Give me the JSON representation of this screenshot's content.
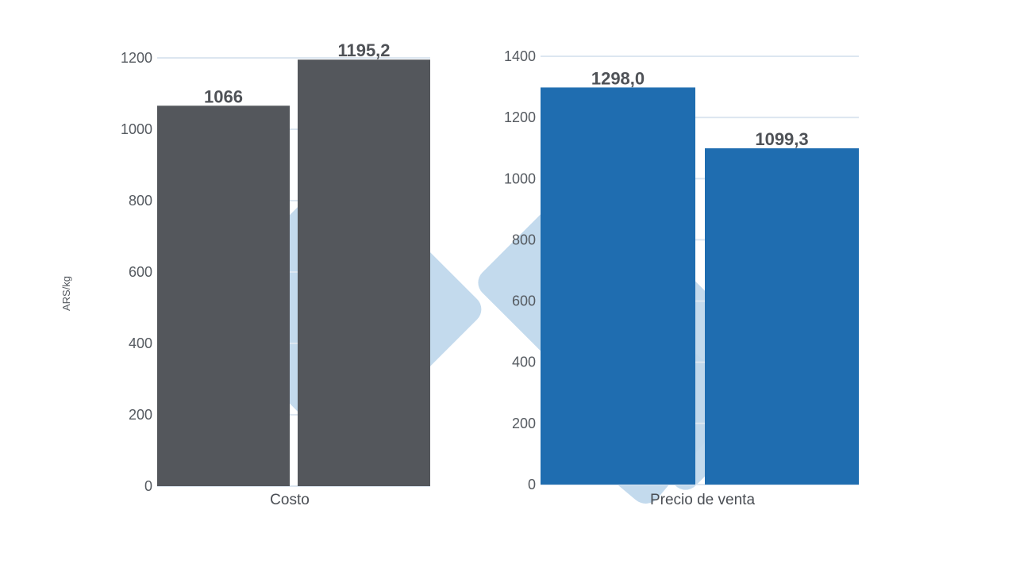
{
  "chart_data": [
    {
      "type": "bar",
      "ylabel": "ARS/kg",
      "category": "Costo",
      "values": [
        1066,
        1195.2
      ],
      "value_labels": [
        "1066",
        "1195,2"
      ],
      "ylim": [
        0,
        1200
      ],
      "yticks": [
        "0",
        "200",
        "400",
        "600",
        "800",
        "1000",
        "1200"
      ],
      "bar_color": "#54575c",
      "grid": true
    },
    {
      "type": "bar",
      "category": "Precio de venta",
      "values": [
        1298.0,
        1099.3
      ],
      "value_labels": [
        "1298,0",
        "1099,3"
      ],
      "ylim": [
        0,
        1400
      ],
      "yticks": [
        "0",
        "200",
        "400",
        "600",
        "800",
        "1000",
        "1200",
        "1400"
      ],
      "bar_color": "#1f6db0",
      "grid": true
    }
  ],
  "watermark_color": "#c0d8ec",
  "gridline_color": "#dce6f0"
}
